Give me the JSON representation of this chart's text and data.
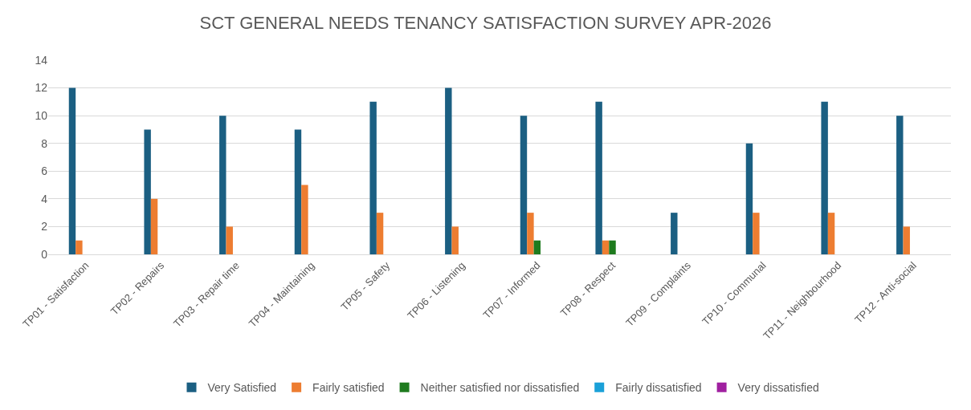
{
  "chart_data": {
    "type": "bar",
    "title": "SCT GENERAL NEEDS TENANCY SATISFACTION SURVEY APR-2026",
    "categories": [
      "TP01 - Satisfaction",
      "TP02 - Repairs",
      "TP03 - Repair time",
      "TP04 - Maintaining",
      "TP05 - Safety",
      "TP06 - Listening",
      "TP07 - Informed",
      "TP08 - Respect",
      "TP09 - Complaints",
      "TP10 - Communal",
      "TP11 - Neighbourhood",
      "TP12 - Anti-social"
    ],
    "series": [
      {
        "name": "Very Satisfied",
        "color": "#1b5f82",
        "values": [
          12,
          9,
          10,
          9,
          11,
          12,
          10,
          11,
          3,
          8,
          11,
          10
        ]
      },
      {
        "name": "Fairly satisfied",
        "color": "#ed7d31",
        "values": [
          1,
          4,
          2,
          5,
          3,
          2,
          3,
          1,
          0,
          3,
          3,
          2
        ]
      },
      {
        "name": "Neither satisfied nor dissatisfied",
        "color": "#1e7b1e",
        "values": [
          0,
          0,
          0,
          0,
          0,
          0,
          1,
          1,
          0,
          0,
          0,
          0
        ]
      },
      {
        "name": "Fairly dissatisfied",
        "color": "#1aa0d8",
        "values": [
          0,
          0,
          0,
          0,
          0,
          0,
          0,
          0,
          0,
          0,
          0,
          0
        ]
      },
      {
        "name": "Very dissatisfied",
        "color": "#a020a0",
        "values": [
          0,
          0,
          0,
          0,
          0,
          0,
          0,
          0,
          0,
          0,
          0,
          0
        ]
      }
    ],
    "ylim": [
      0,
      14
    ],
    "yticks": [
      0,
      2,
      4,
      6,
      8,
      10,
      12,
      14
    ],
    "grid": "y",
    "legend": "bottom"
  }
}
